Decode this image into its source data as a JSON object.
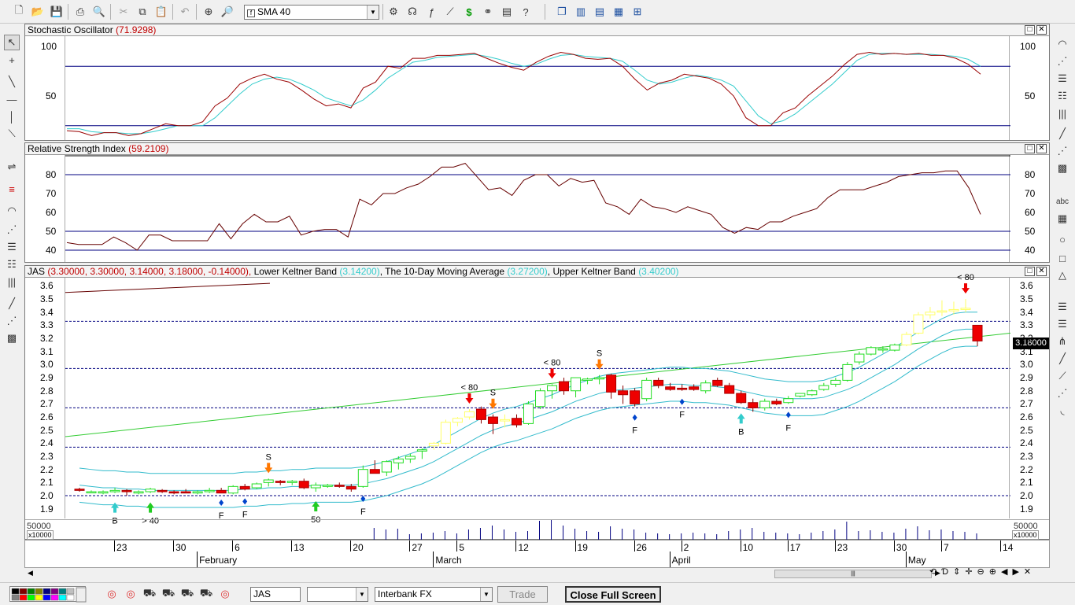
{
  "toolbar": {
    "indicator_select": "SMA 40"
  },
  "stoch": {
    "title": "Stochastic Oscillator",
    "value": "(71.9298)",
    "ticks": [
      "100",
      "50"
    ],
    "k": [
      15,
      14,
      10,
      13,
      13,
      10,
      12,
      17,
      22,
      20,
      20,
      24,
      40,
      48,
      62,
      68,
      72,
      67,
      64,
      56,
      47,
      40,
      42,
      38,
      58,
      64,
      80,
      78,
      88,
      88,
      91,
      91,
      92,
      93,
      88,
      83,
      79,
      76,
      84,
      90,
      94,
      92,
      88,
      87,
      88,
      80,
      67,
      56,
      63,
      66,
      72,
      70,
      68,
      62,
      50,
      28,
      20,
      20,
      33,
      38,
      50,
      60,
      70,
      82,
      92,
      94,
      92,
      93,
      92,
      93,
      91,
      91,
      88,
      82,
      72
    ],
    "d": [
      17,
      17,
      14,
      13,
      13,
      12,
      12,
      14,
      17,
      20,
      20,
      20,
      28,
      40,
      52,
      62,
      67,
      69,
      67,
      62,
      56,
      48,
      44,
      40,
      46,
      56,
      68,
      76,
      84,
      86,
      89,
      90,
      91,
      92,
      90,
      87,
      83,
      80,
      82,
      87,
      91,
      92,
      90,
      89,
      88,
      85,
      76,
      66,
      62,
      64,
      68,
      71,
      69,
      66,
      60,
      45,
      30,
      22,
      25,
      32,
      42,
      52,
      62,
      74,
      86,
      92,
      93,
      93,
      92,
      92,
      92,
      91,
      90,
      87,
      80
    ]
  },
  "rsi": {
    "title": "Relative Strength Index",
    "value": "(59.2109)",
    "ticks": [
      "80",
      "70",
      "60",
      "50",
      "40"
    ],
    "values": [
      44,
      43,
      43,
      43,
      47,
      44,
      40,
      48,
      48,
      45,
      45,
      45,
      45,
      54,
      46,
      54,
      59,
      55,
      55,
      58,
      48,
      50,
      51,
      51,
      47,
      67,
      64,
      70,
      70,
      73,
      75,
      79,
      84,
      84,
      86,
      79,
      72,
      73,
      69,
      77,
      80,
      80,
      74,
      78,
      76,
      77,
      65,
      63,
      59,
      67,
      63,
      62,
      60,
      63,
      61,
      59,
      52,
      49,
      52,
      51,
      55,
      55,
      58,
      60,
      62,
      68,
      72,
      72,
      72,
      74,
      76,
      79,
      80,
      81,
      81,
      82,
      82,
      73,
      59
    ]
  },
  "price": {
    "title": "JAS",
    "ohlc_text": "(3.30000, 3.30000, 3.14000, 3.18000, -0.14000),",
    "lower_label": "Lower Keltner Band",
    "lower_value": "(3.14200)",
    "ma_label": "The 10-Day Moving Average",
    "ma_value": "(3.27200)",
    "upper_label": "Upper Keltner Band",
    "upper_value": "(3.40200)",
    "last_price": "3.18000",
    "ticks": [
      "3.6",
      "3.5",
      "3.4",
      "3.3",
      "3.2",
      "3.1",
      "3.0",
      "2.9",
      "2.8",
      "2.7",
      "2.6",
      "2.5",
      "2.4",
      "2.3",
      "2.2",
      "2.1",
      "2.0",
      "1.9"
    ],
    "volume_tick": "50000",
    "volume_unit": "x10000",
    "ohlc": [
      [
        2.05,
        2.06,
        2.03,
        2.04
      ],
      [
        2.03,
        2.04,
        2.02,
        2.03
      ],
      [
        2.02,
        2.04,
        2.01,
        2.03
      ],
      [
        2.03,
        2.06,
        2.02,
        2.04
      ],
      [
        2.04,
        2.05,
        2.0,
        2.03
      ],
      [
        2.02,
        2.04,
        2.01,
        2.03
      ],
      [
        2.03,
        2.06,
        2.02,
        2.05
      ],
      [
        2.04,
        2.05,
        2.02,
        2.03
      ],
      [
        2.03,
        2.04,
        2.01,
        2.02
      ],
      [
        2.03,
        2.05,
        2.02,
        2.02
      ],
      [
        2.02,
        2.04,
        2.01,
        2.03
      ],
      [
        2.03,
        2.06,
        2.02,
        2.04
      ],
      [
        2.04,
        2.06,
        2.03,
        2.02
      ],
      [
        2.02,
        2.08,
        2.01,
        2.07
      ],
      [
        2.07,
        2.09,
        2.04,
        2.05
      ],
      [
        2.06,
        2.1,
        2.05,
        2.09
      ],
      [
        2.1,
        2.13,
        2.07,
        2.12
      ],
      [
        2.11,
        2.12,
        2.08,
        2.1
      ],
      [
        2.1,
        2.12,
        2.08,
        2.11
      ],
      [
        2.11,
        2.13,
        2.05,
        2.06
      ],
      [
        2.06,
        2.1,
        2.03,
        2.08
      ],
      [
        2.07,
        2.09,
        2.06,
        2.08
      ],
      [
        2.08,
        2.1,
        2.06,
        2.07
      ],
      [
        2.07,
        2.09,
        2.03,
        2.05
      ],
      [
        2.07,
        2.23,
        2.06,
        2.2
      ],
      [
        2.2,
        2.27,
        2.17,
        2.17
      ],
      [
        2.18,
        2.27,
        2.15,
        2.26
      ],
      [
        2.25,
        2.3,
        2.2,
        2.28
      ],
      [
        2.28,
        2.32,
        2.25,
        2.3
      ],
      [
        2.34,
        2.36,
        2.28,
        2.35
      ],
      [
        2.38,
        2.41,
        2.35,
        2.4
      ],
      [
        2.4,
        2.58,
        2.39,
        2.56
      ],
      [
        2.56,
        2.6,
        2.53,
        2.59
      ],
      [
        2.6,
        2.66,
        2.58,
        2.64
      ],
      [
        2.66,
        2.68,
        2.55,
        2.58
      ],
      [
        2.6,
        2.62,
        2.47,
        2.55
      ],
      [
        2.57,
        2.62,
        2.52,
        2.58
      ],
      [
        2.59,
        2.62,
        2.52,
        2.54
      ],
      [
        2.55,
        2.72,
        2.54,
        2.7
      ],
      [
        2.68,
        2.82,
        2.66,
        2.8
      ],
      [
        2.8,
        2.85,
        2.74,
        2.84
      ],
      [
        2.87,
        2.9,
        2.77,
        2.8
      ],
      [
        2.8,
        2.9,
        2.75,
        2.9
      ],
      [
        2.88,
        2.9,
        2.85,
        2.89
      ],
      [
        2.89,
        2.92,
        2.85,
        2.9
      ],
      [
        2.92,
        2.93,
        2.74,
        2.79
      ],
      [
        2.8,
        2.84,
        2.7,
        2.77
      ],
      [
        2.8,
        2.82,
        2.68,
        2.7
      ],
      [
        2.74,
        2.9,
        2.72,
        2.88
      ],
      [
        2.88,
        2.9,
        2.82,
        2.84
      ],
      [
        2.83,
        2.86,
        2.8,
        2.81
      ],
      [
        2.82,
        2.85,
        2.8,
        2.81
      ],
      [
        2.83,
        2.85,
        2.8,
        2.81
      ],
      [
        2.8,
        2.88,
        2.78,
        2.86
      ],
      [
        2.88,
        2.9,
        2.83,
        2.84
      ],
      [
        2.84,
        2.86,
        2.79,
        2.78
      ],
      [
        2.78,
        2.8,
        2.7,
        2.71
      ],
      [
        2.71,
        2.74,
        2.64,
        2.67
      ],
      [
        2.67,
        2.74,
        2.65,
        2.72
      ],
      [
        2.72,
        2.74,
        2.69,
        2.7
      ],
      [
        2.71,
        2.76,
        2.7,
        2.74
      ],
      [
        2.76,
        2.78,
        2.75,
        2.78
      ],
      [
        2.77,
        2.81,
        2.76,
        2.8
      ],
      [
        2.81,
        2.86,
        2.8,
        2.84
      ],
      [
        2.85,
        2.9,
        2.83,
        2.88
      ],
      [
        2.88,
        3.02,
        2.87,
        3.0
      ],
      [
        3.02,
        3.1,
        3.0,
        3.08
      ],
      [
        3.08,
        3.14,
        3.07,
        3.13
      ],
      [
        3.12,
        3.14,
        3.09,
        3.12
      ],
      [
        3.11,
        3.16,
        3.1,
        3.15
      ],
      [
        3.15,
        3.25,
        3.14,
        3.23
      ],
      [
        3.24,
        3.4,
        3.23,
        3.38
      ],
      [
        3.38,
        3.44,
        3.35,
        3.4
      ],
      [
        3.4,
        3.49,
        3.37,
        3.41
      ],
      [
        3.41,
        3.48,
        3.38,
        3.42
      ],
      [
        3.42,
        3.5,
        3.4,
        3.43
      ],
      [
        3.3,
        3.3,
        3.14,
        3.18
      ]
    ],
    "ma": [
      2.08,
      2.07,
      2.06,
      2.06,
      2.05,
      2.05,
      2.04,
      2.04,
      2.04,
      2.04,
      2.04,
      2.04,
      2.04,
      2.04,
      2.05,
      2.05,
      2.06,
      2.06,
      2.07,
      2.07,
      2.08,
      2.08,
      2.08,
      2.08,
      2.09,
      2.11,
      2.13,
      2.16,
      2.19,
      2.22,
      2.26,
      2.31,
      2.36,
      2.41,
      2.46,
      2.5,
      2.53,
      2.55,
      2.58,
      2.61,
      2.64,
      2.68,
      2.72,
      2.75,
      2.78,
      2.8,
      2.81,
      2.82,
      2.83,
      2.84,
      2.85,
      2.85,
      2.84,
      2.84,
      2.83,
      2.82,
      2.8,
      2.78,
      2.76,
      2.75,
      2.74,
      2.74,
      2.74,
      2.75,
      2.78,
      2.81,
      2.85,
      2.9,
      2.95,
      3.0,
      3.06,
      3.12,
      3.17,
      3.22,
      3.26,
      3.27,
      3.27
    ],
    "sma40": [
      2.45,
      3.24
    ],
    "trend": [
      3.55,
      3.62
    ],
    "hlines": [
      3.33,
      2.97,
      2.67,
      2.37,
      2.0
    ],
    "volumes": [
      0,
      0,
      0,
      0,
      0,
      0,
      0,
      0,
      0,
      0,
      0,
      0,
      0,
      1,
      0,
      0,
      0,
      0,
      0,
      0,
      0,
      0,
      0,
      0,
      1,
      16,
      14,
      15,
      8,
      9,
      10,
      12,
      9,
      14,
      16,
      19,
      14,
      11,
      12,
      25,
      26,
      19,
      15,
      12,
      11,
      18,
      15,
      14,
      10,
      9,
      8,
      9,
      10,
      9,
      8,
      12,
      14,
      16,
      11,
      10,
      9,
      8,
      10,
      12,
      14,
      24,
      12,
      13,
      11,
      10,
      15,
      18,
      13,
      14,
      12,
      11,
      9
    ],
    "signals": [
      {
        "label": "B",
        "i": 3,
        "type": "up_cyan"
      },
      {
        "label": "> 40",
        "i": 6,
        "type": "up_green"
      },
      {
        "label": "F",
        "i": 12,
        "type": "diamond"
      },
      {
        "label": "F",
        "i": 14,
        "type": "diamond"
      },
      {
        "label": "S",
        "i": 16,
        "type": "down_orange_top"
      },
      {
        "label": "50",
        "i": 20,
        "type": "up_green"
      },
      {
        "label": "F",
        "i": 24,
        "type": "diamond"
      },
      {
        "label": "< 80",
        "i": 33,
        "type": "down_red"
      },
      {
        "label": "S",
        "i": 35,
        "type": "down_orange"
      },
      {
        "label": "< 80",
        "i": 40,
        "type": "down_red"
      },
      {
        "label": "S",
        "i": 44,
        "type": "down_orange_top"
      },
      {
        "label": "F",
        "i": 47,
        "type": "diamond"
      },
      {
        "label": "F",
        "i": 51,
        "type": "diamond"
      },
      {
        "label": "B",
        "i": 56,
        "type": "up_cyan"
      },
      {
        "label": "F",
        "i": 60,
        "type": "diamond"
      },
      {
        "label": "< 80",
        "i": 75,
        "type": "down_red"
      }
    ]
  },
  "timeaxis": {
    "days": [
      {
        "t": "23",
        "i": 3
      },
      {
        "t": "30",
        "i": 8
      },
      {
        "t": "6",
        "i": 13
      },
      {
        "t": "13",
        "i": 18
      },
      {
        "t": "20",
        "i": 23
      },
      {
        "t": "27",
        "i": 28
      },
      {
        "t": "5",
        "i": 32
      },
      {
        "t": "12",
        "i": 37
      },
      {
        "t": "19",
        "i": 42
      },
      {
        "t": "26",
        "i": 47
      },
      {
        "t": "2",
        "i": 51
      },
      {
        "t": "10",
        "i": 56
      },
      {
        "t": "17",
        "i": 60
      },
      {
        "t": "23",
        "i": 64
      },
      {
        "t": "30",
        "i": 69
      },
      {
        "t": "7",
        "i": 73
      },
      {
        "t": "14",
        "i": 78
      }
    ],
    "months": [
      {
        "t": "February",
        "i": 10
      },
      {
        "t": "March",
        "i": 30
      },
      {
        "t": "April",
        "i": 50
      },
      {
        "t": "May",
        "i": 70
      }
    ]
  },
  "statusbar": {
    "symbol": "JAS",
    "feed": "Interbank FX",
    "trade_label": "Trade",
    "close_full_label": "Close Full Screen"
  },
  "colors": {
    "stoch_k": "#990000",
    "stoch_d": "#33cccc",
    "rsi": "#660000",
    "bull": "#22dd22",
    "bull_high": "#ffff66",
    "bear": "#ee0000",
    "band": "#33bbcc",
    "sma": "#33cc33",
    "ref": "#000080"
  }
}
